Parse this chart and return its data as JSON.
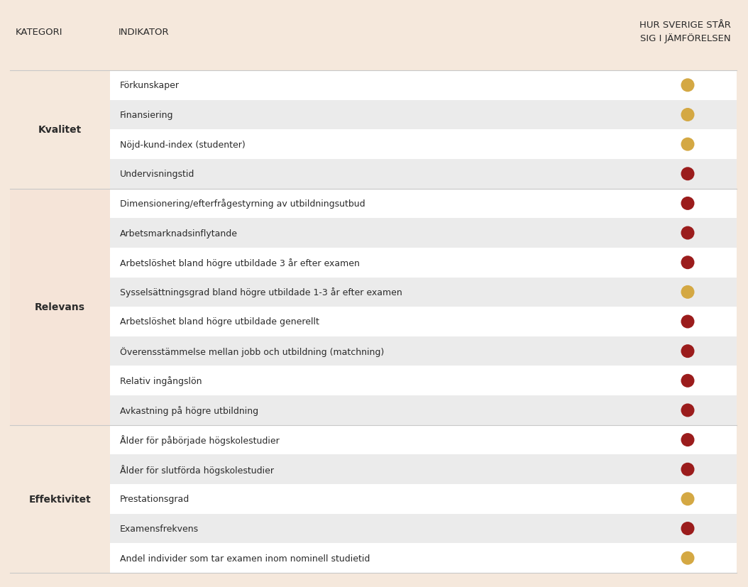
{
  "background_color": "#f5e8dc",
  "table_bg_white": "#ffffff",
  "table_bg_gray": "#ebebeb",
  "relevans_bg": "#f5e4d8",
  "header_text": "#2b2b2b",
  "body_text": "#2b2b2b",
  "kategori_col_header": "KATEGORI",
  "indikator_col_header": "INDIKATOR",
  "hur_col_header": "HUR SVERIGE STÅR\nSIG I JÄMFÖRELSEN",
  "color_gold": "#d4a843",
  "color_red": "#9b1c1c",
  "rows": [
    {
      "kategori": "Kvalitet",
      "indikator": "Förkunskaper",
      "color": "gold"
    },
    {
      "kategori": "",
      "indikator": "Finansiering",
      "color": "gold"
    },
    {
      "kategori": "",
      "indikator": "Nöjd-kund-index (studenter)",
      "color": "gold"
    },
    {
      "kategori": "",
      "indikator": "Undervisningstid",
      "color": "red"
    },
    {
      "kategori": "Relevans",
      "indikator": "Dimensionering/efterfrågestyrning av utbildningsutbud",
      "color": "red"
    },
    {
      "kategori": "",
      "indikator": "Arbetsmarknadsinflytande",
      "color": "red"
    },
    {
      "kategori": "",
      "indikator": "Arbetslöshet bland högre utbildade 3 år efter examen",
      "color": "red"
    },
    {
      "kategori": "",
      "indikator": "Sysselsättningsgrad bland högre utbildade 1-3 år efter examen",
      "color": "gold"
    },
    {
      "kategori": "",
      "indikator": "Arbetslöshet bland högre utbildade generellt",
      "color": "red"
    },
    {
      "kategori": "",
      "indikator": "Överensstämmelse mellan jobb och utbildning (matchning)",
      "color": "red"
    },
    {
      "kategori": "",
      "indikator": "Relativ ingångslön",
      "color": "red"
    },
    {
      "kategori": "",
      "indikator": "Avkastning på högre utbildning",
      "color": "red"
    },
    {
      "kategori": "Effektivitet",
      "indikator": "Ålder för påbörjade högskolestudier",
      "color": "red"
    },
    {
      "kategori": "",
      "indikator": "Ålder för slutförda högskolestudier",
      "color": "red"
    },
    {
      "kategori": "",
      "indikator": "Prestationsgrad",
      "color": "gold"
    },
    {
      "kategori": "",
      "indikator": "Examensfrekvens",
      "color": "red"
    },
    {
      "kategori": "",
      "indikator": "Andel individer som tar examen inom nominell studietid",
      "color": "gold"
    }
  ],
  "kategori_groups": [
    {
      "name": "Kvalitet",
      "start": 0,
      "end": 3,
      "in_relevans": false
    },
    {
      "name": "Relevans",
      "start": 4,
      "end": 11,
      "in_relevans": true
    },
    {
      "name": "Effektivitet",
      "start": 12,
      "end": 16,
      "in_relevans": false
    }
  ]
}
